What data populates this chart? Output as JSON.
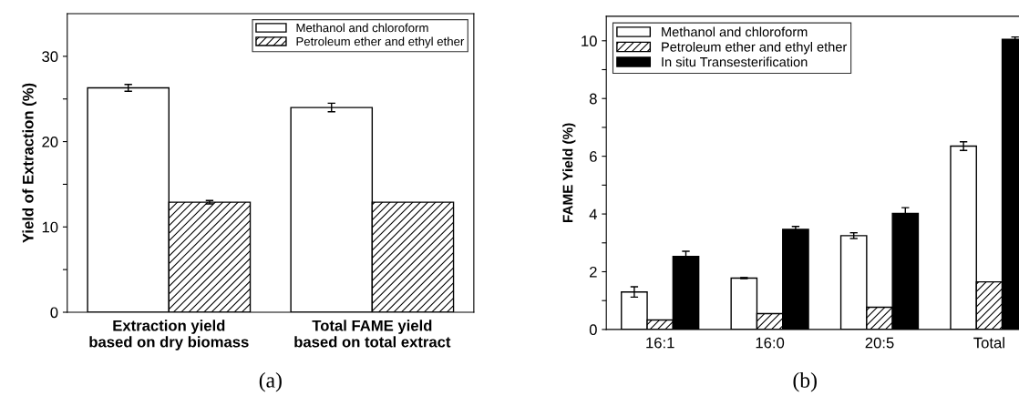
{
  "chart_data": [
    {
      "type": "bar",
      "ylabel": "Yield of Extraction (%)",
      "categories": [
        "Extraction yield\nbased on dry biomass",
        "Total FAME yield\nbased on total extract"
      ],
      "series": [
        {
          "name": "Methanol and chloroform",
          "color": "#ffffff",
          "values": [
            26.3,
            24.0
          ],
          "errors": [
            0.4,
            0.5
          ]
        },
        {
          "name": "Petroleum ether and ethyl ether",
          "color": "#000000",
          "values": [
            12.9,
            12.9
          ],
          "errors": [
            0.2,
            null
          ]
        }
      ],
      "ylim": [
        0,
        35
      ],
      "yticks": [
        0,
        {
          "value": 5,
          "label": null
        },
        10,
        {
          "value": 15,
          "label": null
        },
        20,
        {
          "value": 25,
          "label": null
        },
        30
      ],
      "legend": "top right",
      "annotations": [
        "(a)"
      ]
    },
    {
      "type": "bar",
      "ylabel": "FAME Yield (%)",
      "categories": [
        "16:1",
        "16:0",
        "20:5",
        "Total"
      ],
      "series": [
        {
          "name": "Methanol and chloroform",
          "color": "#ffffff",
          "values": [
            1.3,
            1.78,
            3.25,
            6.35
          ],
          "errors": [
            0.18,
            0.02,
            0.1,
            0.15
          ]
        },
        {
          "name": "Petroleum ether and ethyl ether",
          "color": "#000000",
          "values": [
            0.33,
            0.55,
            0.77,
            1.65
          ]
        },
        {
          "name": "In situ Transesterification",
          "color": "#000000",
          "values": [
            2.53,
            3.47,
            4.02,
            10.05
          ],
          "errors": [
            0.18,
            0.1,
            0.2,
            0.08
          ]
        }
      ],
      "ylim": [
        0,
        10.85
      ],
      "yticks": [
        0,
        {
          "value": 1,
          "label": null
        },
        2,
        {
          "value": 3,
          "label": null
        },
        4,
        {
          "value": 5,
          "label": null
        },
        6,
        {
          "value": 7,
          "label": null
        },
        8,
        {
          "value": 9,
          "label": null
        },
        10
      ],
      "legend": "top left",
      "annotations": [
        "(b)"
      ]
    }
  ]
}
